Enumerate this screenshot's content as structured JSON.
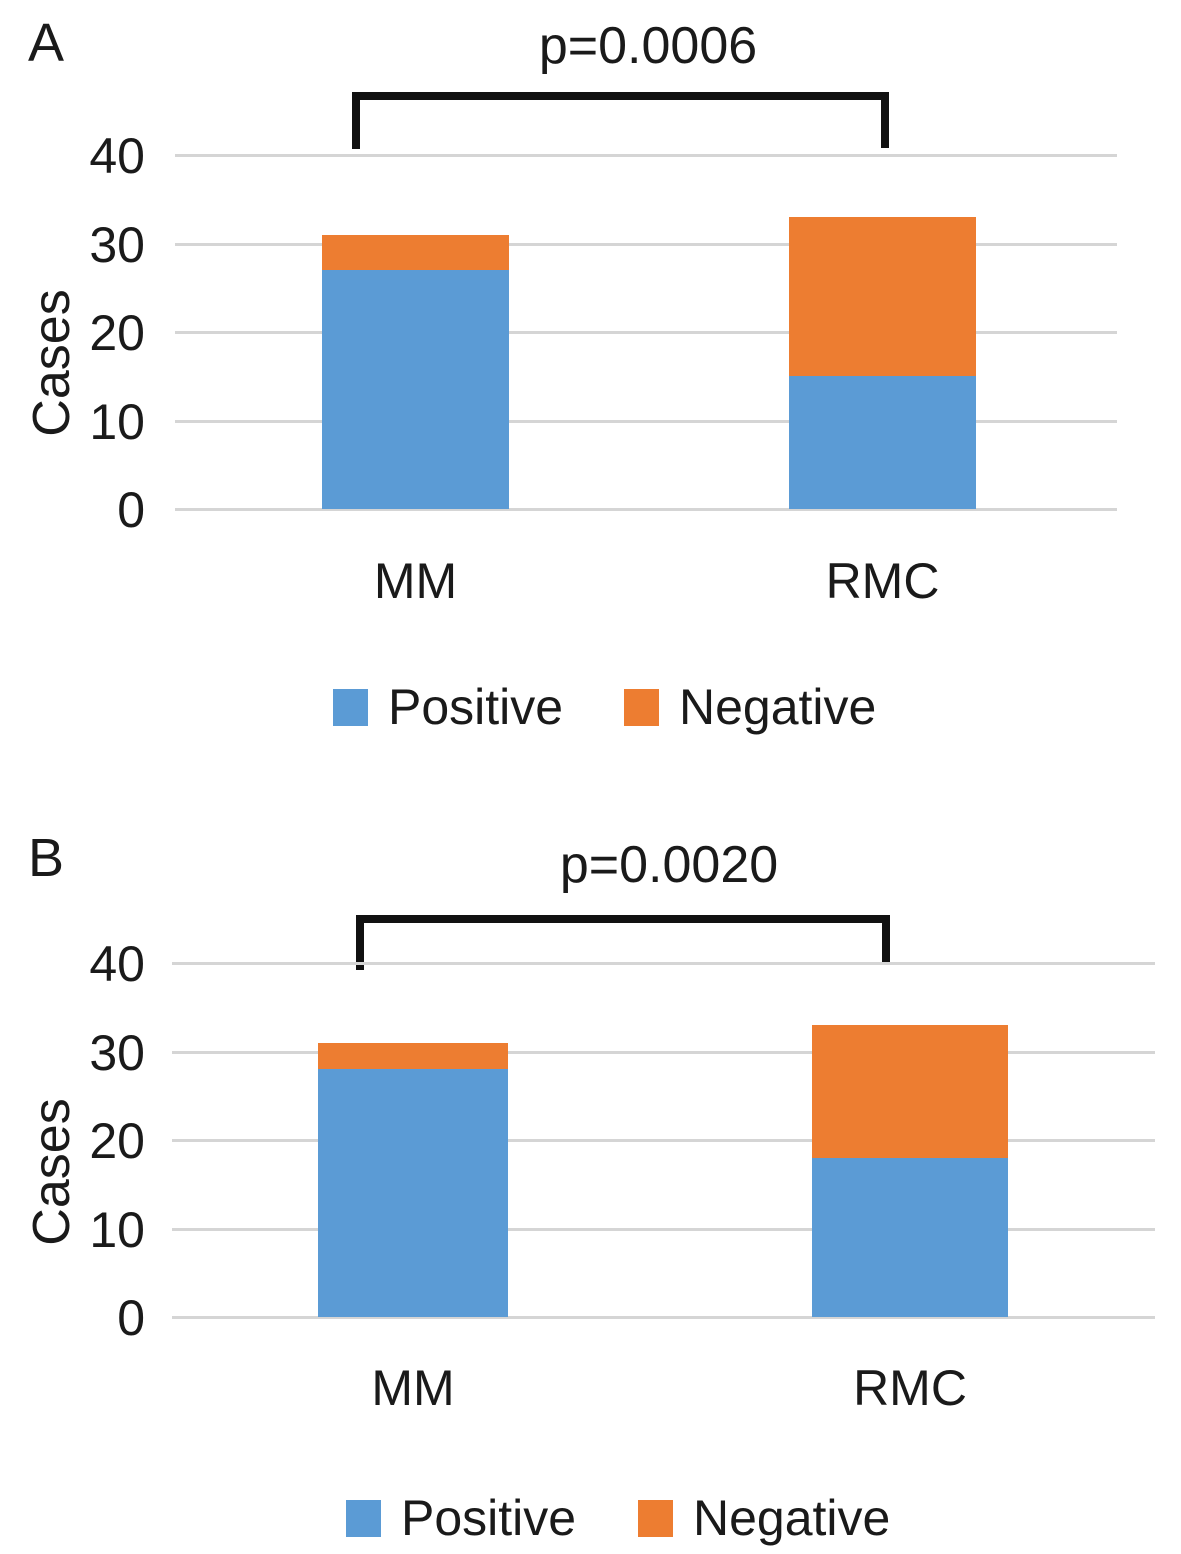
{
  "chart_data": [
    {
      "type": "bar",
      "stacked": true,
      "panel_label": "A",
      "annotation": "p=0.0006",
      "categories": [
        "MM",
        "RMC"
      ],
      "series": [
        {
          "name": "Positive",
          "color": "#5B9BD5",
          "values": [
            27,
            15
          ]
        },
        {
          "name": "Negative",
          "color": "#ED7D31",
          "values": [
            4,
            18
          ]
        }
      ],
      "totals": [
        31,
        33
      ],
      "ylabel": "Cases",
      "xlabel": "",
      "title": "",
      "yticks": [
        0,
        10,
        20,
        30,
        40
      ],
      "ylim": [
        0,
        40
      ],
      "grid": true,
      "legend_position": "bottom"
    },
    {
      "type": "bar",
      "stacked": true,
      "panel_label": "B",
      "annotation": "p=0.0020",
      "categories": [
        "MM",
        "RMC"
      ],
      "series": [
        {
          "name": "Positive",
          "color": "#5B9BD5",
          "values": [
            28,
            18
          ]
        },
        {
          "name": "Negative",
          "color": "#ED7D31",
          "values": [
            3,
            15
          ]
        }
      ],
      "totals": [
        31,
        33
      ],
      "ylabel": "Cases",
      "xlabel": "",
      "title": "",
      "yticks": [
        0,
        10,
        20,
        30,
        40
      ],
      "ylim": [
        0,
        40
      ],
      "grid": true,
      "legend_position": "bottom"
    }
  ],
  "colors": {
    "positive": "#5B9BD5",
    "negative": "#ED7D31",
    "gridline": "#D5D5D5",
    "bracket": "#111111",
    "text": "#1A1A1A",
    "background": "#FFFFFF"
  }
}
